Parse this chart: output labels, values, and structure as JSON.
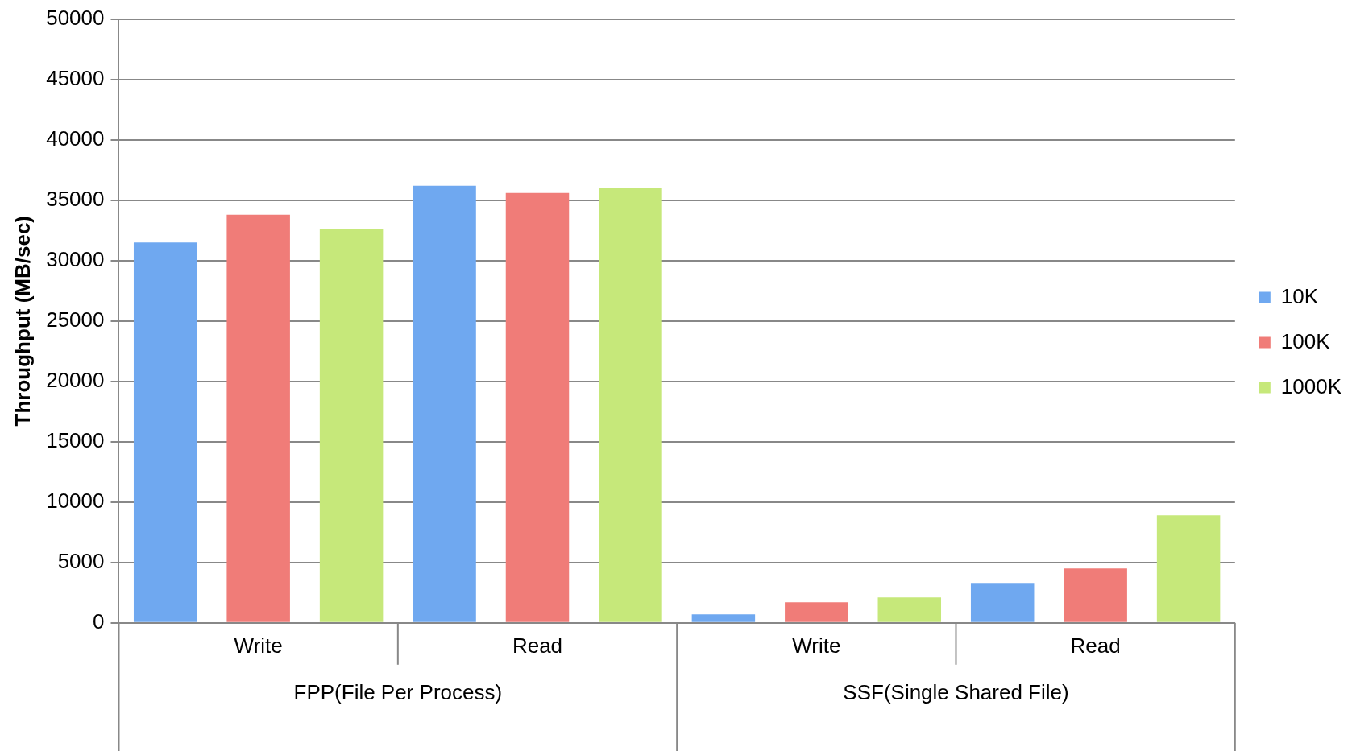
{
  "chart_data": {
    "type": "bar",
    "ylabel": "Throughput (MB/sec)",
    "categories": [
      "Write",
      "Read",
      "Write",
      "Read"
    ],
    "annotations": [
      "FPP(File Per Process)",
      "SSF(Single Shared File)"
    ],
    "series": [
      {
        "name": "10K",
        "color": "#6fa8f0",
        "values": [
          31500,
          36200,
          700,
          3300
        ]
      },
      {
        "name": "100K",
        "color": "#f07c78",
        "values": [
          33800,
          35600,
          1700,
          4500
        ]
      },
      {
        "name": "1000K",
        "color": "#c6e87a",
        "values": [
          32600,
          36000,
          2100,
          8900
        ]
      }
    ],
    "ylim": [
      0,
      50000
    ],
    "yticks": [
      0,
      5000,
      10000,
      15000,
      20000,
      25000,
      30000,
      35000,
      40000,
      45000,
      50000
    ],
    "grid": "y",
    "legend": "right"
  }
}
